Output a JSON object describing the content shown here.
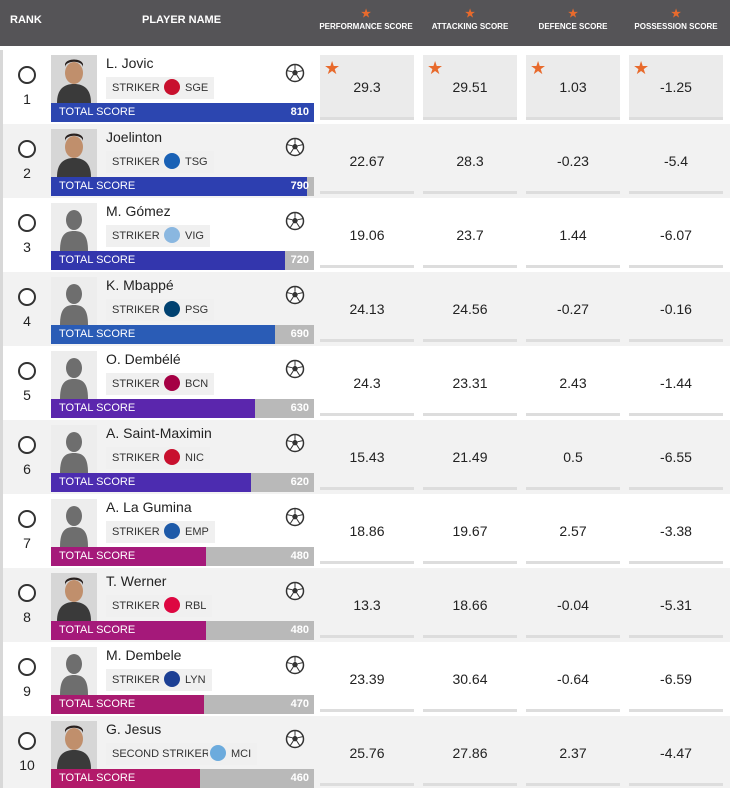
{
  "header": {
    "rank": "RANK",
    "player_name": "PLAYER NAME",
    "performance": "PERFORMANCE SCORE",
    "attacking": "ATTACKING SCORE",
    "defence": "DEFENCE SCORE",
    "possession": "POSSESSION SCORE"
  },
  "total_label": "TOTAL SCORE",
  "colors": {
    "header_bg": "#555457",
    "star": "#e86a2c"
  },
  "players": [
    {
      "rank": "1",
      "name": "L. Jovic",
      "position": "STRIKER",
      "club": "SGE",
      "club_color": "#c8102e",
      "total": "810",
      "total_fraction": 1.0,
      "fill_color": "#2c46b0",
      "performance": "29.3",
      "attacking": "29.51",
      "defence": "1.03",
      "possession": "-1.25",
      "photo": "real",
      "best": true
    },
    {
      "rank": "2",
      "name": "Joelinton",
      "position": "STRIKER",
      "club": "TSG",
      "club_color": "#1961b5",
      "total": "790",
      "total_fraction": 0.975,
      "fill_color": "#2d3fb0",
      "performance": "22.67",
      "attacking": "28.3",
      "defence": "-0.23",
      "possession": "-5.4",
      "photo": "real",
      "best": false
    },
    {
      "rank": "3",
      "name": "M. Gómez",
      "position": "STRIKER",
      "club": "VIG",
      "club_color": "#8ab7e0",
      "total": "720",
      "total_fraction": 0.89,
      "fill_color": "#3336ad",
      "performance": "19.06",
      "attacking": "23.7",
      "defence": "1.44",
      "possession": "-6.07",
      "photo": "silhouette",
      "best": false
    },
    {
      "rank": "4",
      "name": "K. Mbappé",
      "position": "STRIKER",
      "club": "PSG",
      "club_color": "#004170",
      "total": "690",
      "total_fraction": 0.85,
      "fill_color": "#2a5cb6",
      "performance": "24.13",
      "attacking": "24.56",
      "defence": "-0.27",
      "possession": "-0.16",
      "photo": "silhouette",
      "best": false
    },
    {
      "rank": "5",
      "name": "O. Dembélé",
      "position": "STRIKER",
      "club": "BCN",
      "club_color": "#a50044",
      "total": "630",
      "total_fraction": 0.775,
      "fill_color": "#5b26ad",
      "performance": "24.3",
      "attacking": "23.31",
      "defence": "2.43",
      "possession": "-1.44",
      "photo": "silhouette",
      "best": false
    },
    {
      "rank": "6",
      "name": "A. Saint-Maximin",
      "position": "STRIKER",
      "club": "NIC",
      "club_color": "#c8102e",
      "total": "620",
      "total_fraction": 0.76,
      "fill_color": "#4c2cb0",
      "performance": "15.43",
      "attacking": "21.49",
      "defence": "0.5",
      "possession": "-6.55",
      "photo": "silhouette",
      "best": false
    },
    {
      "rank": "7",
      "name": "A. La Gumina",
      "position": "STRIKER",
      "club": "EMP",
      "club_color": "#1e5aa8",
      "total": "480",
      "total_fraction": 0.59,
      "fill_color": "#a5197a",
      "performance": "18.86",
      "attacking": "19.67",
      "defence": "2.57",
      "possession": "-3.38",
      "photo": "silhouette",
      "best": false
    },
    {
      "rank": "8",
      "name": "T. Werner",
      "position": "STRIKER",
      "club": "RBL",
      "club_color": "#dd0741",
      "total": "480",
      "total_fraction": 0.59,
      "fill_color": "#a5197a",
      "performance": "13.3",
      "attacking": "18.66",
      "defence": "-0.04",
      "possession": "-5.31",
      "photo": "real",
      "best": false
    },
    {
      "rank": "9",
      "name": "M. Dembele",
      "position": "STRIKER",
      "club": "LYN",
      "club_color": "#1c3f94",
      "total": "470",
      "total_fraction": 0.58,
      "fill_color": "#a81a6f",
      "performance": "23.39",
      "attacking": "30.64",
      "defence": "-0.64",
      "possession": "-6.59",
      "photo": "silhouette",
      "best": false
    },
    {
      "rank": "10",
      "name": "G. Jesus",
      "position": "SECOND STRIKER",
      "club": "MCI",
      "club_color": "#6cabdd",
      "total": "460",
      "total_fraction": 0.565,
      "fill_color": "#b21a6a",
      "performance": "25.76",
      "attacking": "27.86",
      "defence": "2.37",
      "possession": "-4.47",
      "photo": "real",
      "best": false
    }
  ]
}
